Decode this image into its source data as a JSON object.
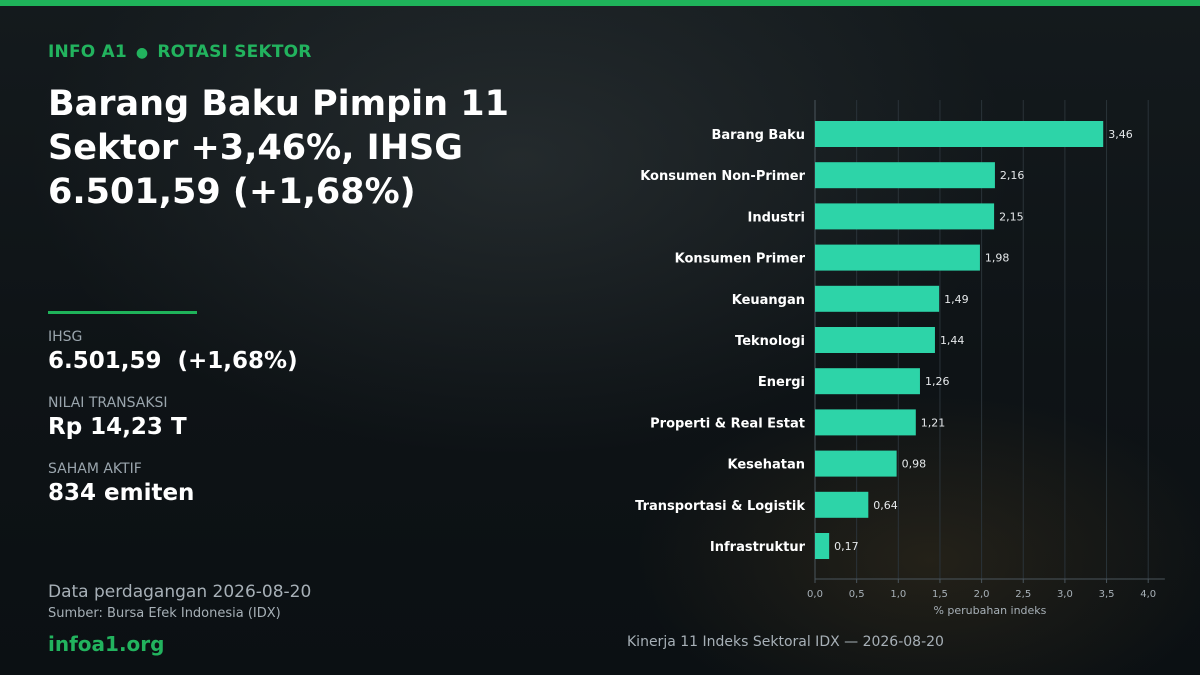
{
  "header": {
    "brand": "INFO A1",
    "section": "ROTASI SEKTOR",
    "headline": "Barang Baku Pimpin 11 Sektor +3,46%, IHSG 6.501,59 (+1,68%)"
  },
  "stats": [
    {
      "label": "IHSG",
      "value": "6.501,59  (+1,68%)"
    },
    {
      "label": "NILAI TRANSAKSI",
      "value": "Rp 14,23 T"
    },
    {
      "label": "SAHAM AKTIF",
      "value": "834 emiten"
    }
  ],
  "footer": {
    "date_line": "Data perdagangan 2026-08-20",
    "source_line": "Sumber: Bursa Efek Indonesia (IDX)",
    "site": "infoa1.org"
  },
  "colors": {
    "accent": "#1fb35a",
    "bar": "#2dd4a8"
  },
  "chart_data": {
    "type": "bar",
    "orientation": "horizontal",
    "caption": "Kinerja 11 Indeks Sektoral IDX — 2026-08-20",
    "xlabel": "% perubahan indeks",
    "xlim": [
      0,
      4.2
    ],
    "xticks": [
      "0,0",
      "0,5",
      "1,0",
      "1,5",
      "2,0",
      "2,5",
      "3,0",
      "3,5",
      "4,0"
    ],
    "grid": true,
    "categories": [
      "Barang Baku",
      "Konsumen Non-Primer",
      "Industri",
      "Konsumen Primer",
      "Keuangan",
      "Teknologi",
      "Energi",
      "Properti & Real Estat",
      "Kesehatan",
      "Transportasi & Logistik",
      "Infrastruktur"
    ],
    "values": [
      3.46,
      2.16,
      2.15,
      1.98,
      1.49,
      1.44,
      1.26,
      1.21,
      0.98,
      0.64,
      0.17
    ],
    "value_labels": [
      "3,46",
      "2,16",
      "2,15",
      "1,98",
      "1,49",
      "1,44",
      "1,26",
      "1,21",
      "0,98",
      "0,64",
      "0,17"
    ]
  }
}
